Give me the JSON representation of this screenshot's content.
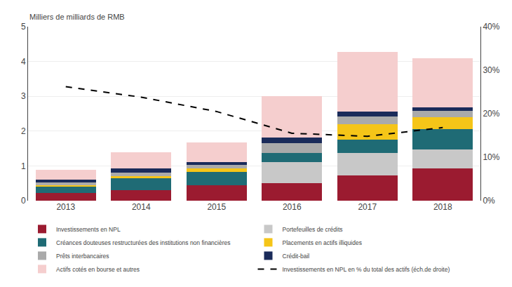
{
  "chart_data": {
    "type": "bar",
    "stacked": true,
    "categories": [
      "2013",
      "2014",
      "2015",
      "2016",
      "2017",
      "2018"
    ],
    "y_label": "Milliers de milliards de RMB",
    "ylim": [
      0,
      5
    ],
    "yticks": [
      0,
      1,
      2,
      3,
      4,
      5
    ],
    "y2lim": [
      0,
      0.4
    ],
    "y2ticks": [
      {
        "value": 0,
        "label": "0%"
      },
      {
        "value": 0.1,
        "label": "10%"
      },
      {
        "value": 0.2,
        "label": "20%"
      },
      {
        "value": 0.3,
        "label": "30%"
      },
      {
        "value": 0.4,
        "label": "40%"
      }
    ],
    "grid": true,
    "legend": "bottom",
    "series": [
      {
        "name": "Investissements en NPL",
        "color": "#9B1B30",
        "values": [
          0.22,
          0.3,
          0.45,
          0.5,
          0.72,
          0.92
        ]
      },
      {
        "name": "Portefeuilles de crédits",
        "color": "#C8C8C8",
        "values": [
          0.0,
          0.0,
          0.0,
          0.6,
          0.65,
          0.55
        ]
      },
      {
        "name": "Créances douteuses restructurées des institutions non financières",
        "color": "#1F6B75",
        "values": [
          0.2,
          0.35,
          0.38,
          0.28,
          0.38,
          0.58
        ]
      },
      {
        "name": "Placements en actifs illiquides",
        "color": "#F5C518",
        "values": [
          0.03,
          0.06,
          0.09,
          0.0,
          0.45,
          0.35
        ]
      },
      {
        "name": "Prêts interbancaires",
        "color": "#AAAAAA",
        "values": [
          0.08,
          0.1,
          0.1,
          0.28,
          0.22,
          0.18
        ]
      },
      {
        "name": "Crédit-bail",
        "color": "#1A2B5A",
        "values": [
          0.08,
          0.12,
          0.08,
          0.16,
          0.14,
          0.1
        ]
      },
      {
        "name": "Actifs cotés en bourse et autres",
        "color": "#F5CECE",
        "values": [
          0.28,
          0.47,
          0.58,
          1.18,
          1.72,
          1.42
        ]
      },
      {
        "name": "Investissements en NPL en % du total des actifs (éch.de droite)",
        "type": "line",
        "axis": "y2",
        "color": "#000000",
        "line_style": "dashed",
        "values": [
          0.262,
          0.238,
          0.205,
          0.155,
          0.148,
          0.168
        ]
      }
    ]
  }
}
